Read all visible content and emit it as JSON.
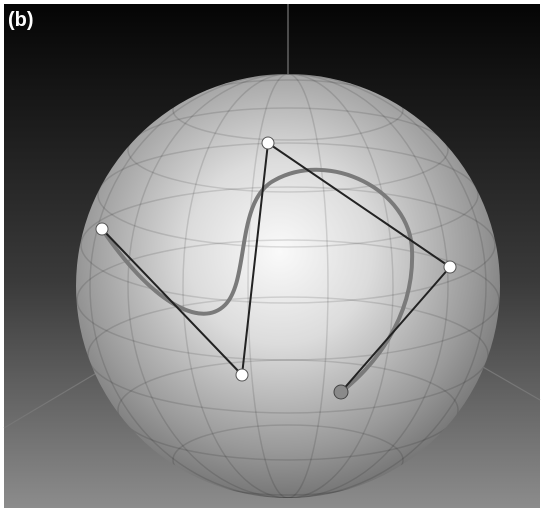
{
  "label": "(b)"
}
